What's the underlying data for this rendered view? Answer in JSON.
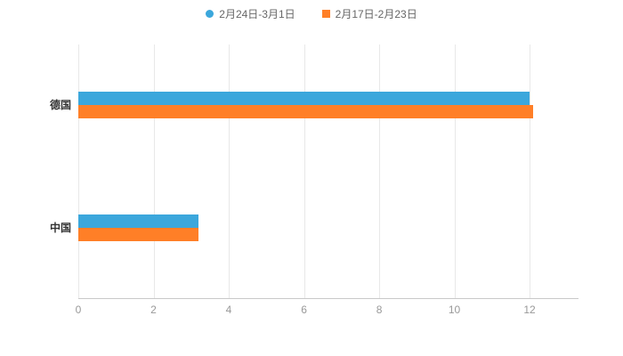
{
  "chart_data": {
    "type": "bar",
    "orientation": "horizontal",
    "title": "",
    "xlabel": "",
    "ylabel": "",
    "categories": [
      "德国",
      "中国"
    ],
    "series": [
      {
        "name": "2月24日-3月1日",
        "color": "#3BA7DC",
        "marker": "circle",
        "values": [
          12,
          3.2
        ]
      },
      {
        "name": "2月17日-2月23日",
        "color": "#FF7F27",
        "marker": "square",
        "values": [
          12.1,
          3.2
        ]
      }
    ],
    "xlim": [
      0,
      13.3
    ],
    "xticks": [
      0,
      2,
      4,
      6,
      8,
      10,
      12
    ],
    "grid": true,
    "legend_position": "top"
  },
  "colors": {
    "background": "#ffffff",
    "grid": "#e8e8e8",
    "axis": "#c9c9c9",
    "tick_text": "#999999",
    "category_text": "#333333",
    "legend_text": "#666666"
  }
}
